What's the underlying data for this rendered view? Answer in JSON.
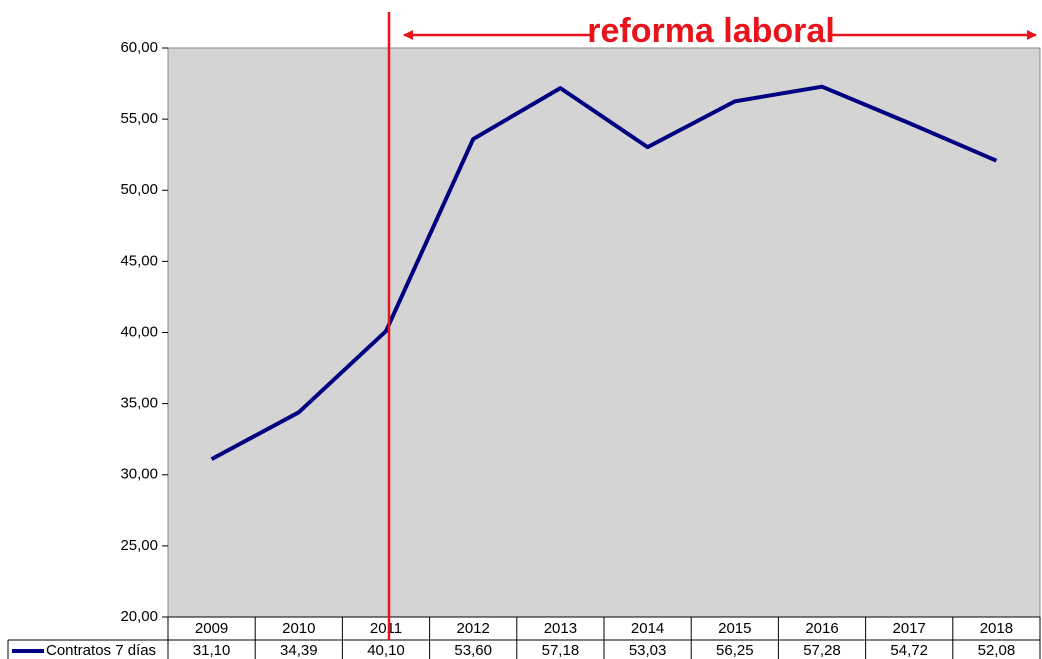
{
  "chart_data": {
    "type": "line",
    "annotation": "reforma laboral",
    "categories": [
      "2009",
      "2010",
      "2011",
      "2012",
      "2013",
      "2014",
      "2015",
      "2016",
      "2017",
      "2018"
    ],
    "series": [
      {
        "name": "Contratos 7 días",
        "color": "#000080",
        "values": [
          31.1,
          34.39,
          40.1,
          53.6,
          57.18,
          53.03,
          56.25,
          57.28,
          54.72,
          52.08
        ],
        "value_labels": [
          "31,10",
          "34,39",
          "40,10",
          "53,60",
          "57,18",
          "53,03",
          "56,25",
          "57,28",
          "54,72",
          "52,08"
        ]
      }
    ],
    "ylim": [
      20,
      60
    ],
    "yticks": [
      {
        "value": 20,
        "label": "20,00"
      },
      {
        "value": 25,
        "label": "25,00"
      },
      {
        "value": 30,
        "label": "30,00"
      },
      {
        "value": 35,
        "label": "35,00"
      },
      {
        "value": 40,
        "label": "40,00"
      },
      {
        "value": 45,
        "label": "45,00"
      },
      {
        "value": 50,
        "label": "50,00"
      },
      {
        "value": 55,
        "label": "55,00"
      },
      {
        "value": 60,
        "label": "60,00"
      }
    ],
    "background": "#d4d4d4",
    "annotation_color": "#e8141b"
  }
}
